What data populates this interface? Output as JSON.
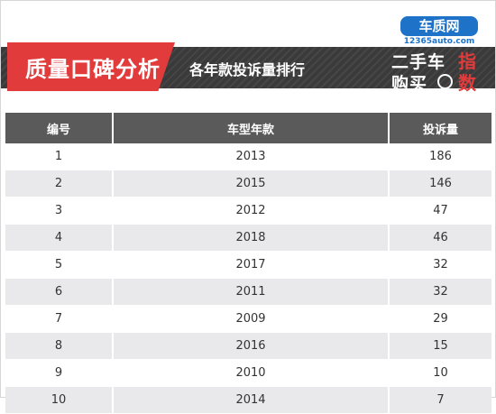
{
  "header": {
    "tag_title": "质量口碑分析",
    "subtitle": "各年款投诉量排行"
  },
  "logo": {
    "brand": "车质网",
    "url": "12365auto.com",
    "line1": "二手车",
    "line2": "购买",
    "accent1": "指",
    "accent2": "数"
  },
  "table": {
    "columns": [
      "编号",
      "车型年款",
      "投诉量"
    ],
    "rows": [
      {
        "id": "1",
        "year": "2013",
        "count": "186"
      },
      {
        "id": "2",
        "year": "2015",
        "count": "146"
      },
      {
        "id": "3",
        "year": "2012",
        "count": "47"
      },
      {
        "id": "4",
        "year": "2018",
        "count": "46"
      },
      {
        "id": "5",
        "year": "2017",
        "count": "32"
      },
      {
        "id": "6",
        "year": "2011",
        "count": "32"
      },
      {
        "id": "7",
        "year": "2009",
        "count": "29"
      },
      {
        "id": "8",
        "year": "2016",
        "count": "15"
      },
      {
        "id": "9",
        "year": "2010",
        "count": "10"
      },
      {
        "id": "10",
        "year": "2014",
        "count": "7"
      }
    ]
  },
  "colors": {
    "accent_red": "#e23b3b",
    "header_gray": "#5a5a5a",
    "band_dark": "#3a3a3a",
    "brand_blue": "#1e73c9",
    "stripe": "#e9e9ec"
  }
}
